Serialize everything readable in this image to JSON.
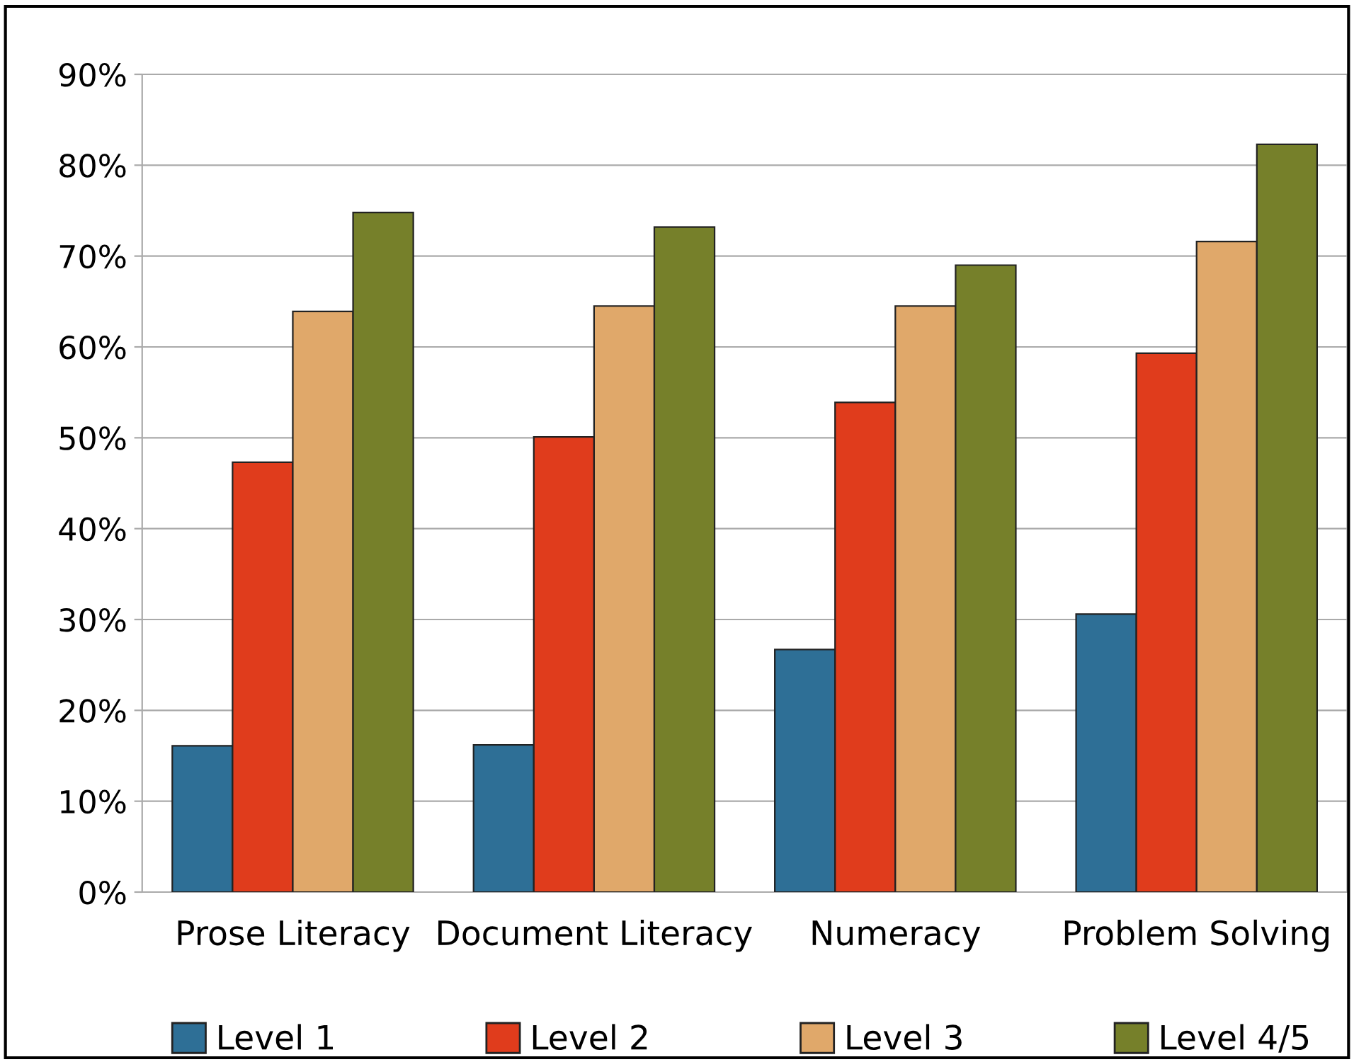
{
  "chart_data": {
    "type": "bar",
    "categories": [
      "Prose Literacy",
      "Document Literacy",
      "Numeracy",
      "Problem Solving"
    ],
    "series": [
      {
        "name": "Level 1",
        "color": "#2e6f96",
        "values": [
          16.1,
          16.2,
          26.7,
          30.6
        ]
      },
      {
        "name": "Level 2",
        "color": "#e03c1c",
        "values": [
          47.3,
          50.1,
          53.9,
          59.3
        ]
      },
      {
        "name": "Level 3",
        "color": "#e0a86a",
        "values": [
          63.9,
          64.5,
          64.5,
          71.6
        ]
      },
      {
        "name": "Level 4/5",
        "color": "#76802a",
        "values": [
          74.8,
          73.2,
          69.0,
          82.3
        ]
      }
    ],
    "ylim": [
      0,
      90
    ],
    "yticks": [
      {
        "value": 0,
        "label": "0%"
      },
      {
        "value": 10,
        "label": "10%"
      },
      {
        "value": 20,
        "label": "20%"
      },
      {
        "value": 30,
        "label": "30%"
      },
      {
        "value": 40,
        "label": "40%"
      },
      {
        "value": 50,
        "label": "50%"
      },
      {
        "value": 60,
        "label": "60%"
      },
      {
        "value": 70,
        "label": "70%"
      },
      {
        "value": 80,
        "label": "80%"
      },
      {
        "value": 90,
        "label": "90%"
      }
    ],
    "grid": "y",
    "legend": "bottom"
  }
}
